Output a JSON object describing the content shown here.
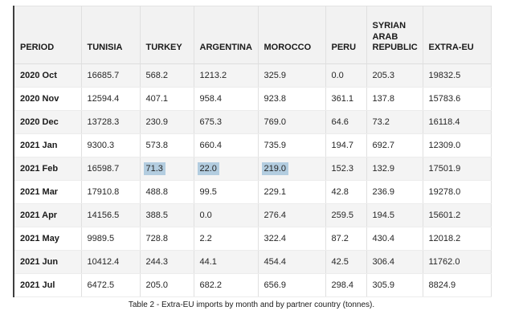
{
  "table": {
    "accent_border_color": "#3f3f3f",
    "header_bg": "#f2f2f2",
    "row_alt_bg": "#f4f4f4",
    "selection_color": "#b3cde0",
    "columns": [
      {
        "label": "PERIOD"
      },
      {
        "label": "TUNISIA"
      },
      {
        "label": "TURKEY"
      },
      {
        "label": "ARGENTINA"
      },
      {
        "label": "MOROCCO"
      },
      {
        "label": "PERU"
      },
      {
        "label": "SYRIAN ARAB REPUBLIC"
      },
      {
        "label": "EXTRA-EU"
      }
    ],
    "rows": [
      {
        "period": "2020 Oct",
        "values": [
          "16685.7",
          "568.2",
          "1213.2",
          "325.9",
          "0.0",
          "205.3",
          "19832.5"
        ]
      },
      {
        "period": "2020 Nov",
        "values": [
          "12594.4",
          "407.1",
          "958.4",
          "923.8",
          "361.1",
          "137.8",
          "15783.6"
        ]
      },
      {
        "period": "2020 Dec",
        "values": [
          "13728.3",
          "230.9",
          "675.3",
          "769.0",
          "64.6",
          "73.2",
          "16118.4"
        ]
      },
      {
        "period": "2021 Jan",
        "values": [
          "9300.3",
          "573.8",
          "660.4",
          "735.9",
          "194.7",
          "692.7",
          "12309.0"
        ]
      },
      {
        "period": "2021 Feb",
        "values": [
          "16598.7",
          "71.3",
          "22.0",
          "219.0",
          "152.3",
          "132.9",
          "17501.9"
        ]
      },
      {
        "period": "2021 Mar",
        "values": [
          "17910.8",
          "488.8",
          "99.5",
          "229.1",
          "42.8",
          "236.9",
          "19278.0"
        ]
      },
      {
        "period": "2021 Apr",
        "values": [
          "14156.5",
          "388.5",
          "0.0",
          "276.4",
          "259.5",
          "194.5",
          "15601.2"
        ]
      },
      {
        "period": "2021 May",
        "values": [
          "9989.5",
          "728.8",
          "2.2",
          "322.4",
          "87.2",
          "430.4",
          "12018.2"
        ]
      },
      {
        "period": "2021 Jun",
        "values": [
          "10412.4",
          "244.3",
          "44.1",
          "454.4",
          "42.5",
          "306.4",
          "11762.0"
        ]
      },
      {
        "period": "2021 Jul",
        "values": [
          "6472.5",
          "205.0",
          "682.2",
          "656.9",
          "298.4",
          "305.9",
          "8824.9"
        ]
      }
    ],
    "selected_cells": {
      "row_index": 4,
      "value_indices": [
        1,
        2,
        3
      ]
    }
  },
  "caption": "Table 2 - Extra-EU imports by month and by partner country (tonnes)."
}
